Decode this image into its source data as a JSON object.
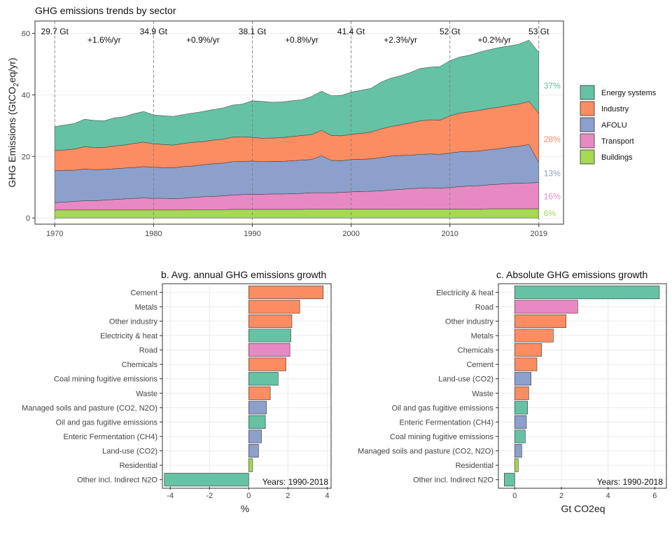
{
  "colors": {
    "Energy systems": "#66c2a5",
    "Industry": "#fc8d62",
    "AFOLU": "#8da0cb",
    "Transport": "#e78ac3",
    "Buildings": "#a6d854"
  },
  "chart_data": [
    {
      "type": "area",
      "title": "GHG emissions trends by sector",
      "ylabel_main": "GHG Emissions (GtCO",
      "ylabel_sub": "2",
      "ylabel_end": "eq/yr)",
      "ylim": [
        -2,
        64
      ],
      "xlim": [
        1968,
        2021.5
      ],
      "x_ticks": [
        1970,
        1980,
        1990,
        2000,
        2010,
        2019
      ],
      "y_ticks": [
        0,
        20,
        40,
        60
      ],
      "legend": {
        "position": "right",
        "order": [
          "Energy systems",
          "Industry",
          "AFOLU",
          "Transport",
          "Buildings"
        ]
      },
      "x": [
        1970,
        1971,
        1972,
        1973,
        1974,
        1975,
        1976,
        1977,
        1978,
        1979,
        1980,
        1981,
        1982,
        1983,
        1984,
        1985,
        1986,
        1987,
        1988,
        1989,
        1990,
        1991,
        1992,
        1993,
        1994,
        1995,
        1996,
        1997,
        1998,
        1999,
        2000,
        2001,
        2002,
        2003,
        2004,
        2005,
        2006,
        2007,
        2008,
        2009,
        2010,
        2011,
        2012,
        2013,
        2014,
        2015,
        2016,
        2017,
        2018,
        2019
      ],
      "series": [
        {
          "name": "Buildings",
          "values": [
            2.6,
            2.6,
            2.6,
            2.6,
            2.6,
            2.6,
            2.6,
            2.6,
            2.6,
            2.6,
            2.6,
            2.6,
            2.6,
            2.6,
            2.7,
            2.7,
            2.7,
            2.7,
            2.8,
            2.8,
            2.8,
            2.8,
            2.8,
            2.8,
            2.8,
            2.8,
            2.9,
            2.9,
            2.9,
            2.9,
            2.9,
            2.9,
            2.9,
            2.9,
            2.9,
            2.9,
            2.9,
            2.9,
            2.9,
            2.9,
            2.9,
            2.9,
            2.9,
            2.9,
            3.0,
            3.0,
            3.0,
            3.0,
            3.0,
            3.0
          ]
        },
        {
          "name": "Transport",
          "values": [
            2.4,
            2.6,
            2.8,
            3.0,
            3.0,
            3.2,
            3.4,
            3.6,
            3.8,
            3.9,
            3.8,
            3.8,
            3.7,
            3.8,
            4.0,
            4.2,
            4.3,
            4.5,
            4.7,
            4.8,
            4.9,
            4.9,
            5.0,
            5.0,
            5.1,
            5.2,
            5.3,
            5.3,
            5.3,
            5.4,
            5.6,
            5.7,
            5.8,
            5.9,
            6.2,
            6.4,
            6.6,
            6.8,
            6.9,
            6.8,
            7.0,
            7.3,
            7.5,
            7.6,
            7.8,
            8.0,
            8.2,
            8.3,
            8.4,
            8.5
          ]
        },
        {
          "name": "AFOLU",
          "values": [
            10.3,
            10.3,
            10.1,
            10.3,
            10.1,
            10.0,
            10.0,
            10.0,
            10.0,
            10.2,
            10.1,
            10.0,
            10.0,
            10.3,
            10.2,
            10.4,
            10.6,
            10.6,
            10.8,
            10.8,
            10.8,
            10.6,
            10.6,
            10.6,
            10.7,
            10.8,
            10.8,
            12.0,
            10.5,
            10.3,
            10.5,
            10.5,
            10.5,
            10.8,
            11.0,
            11.0,
            10.9,
            11.0,
            11.0,
            11.0,
            11.2,
            11.3,
            11.2,
            11.3,
            11.4,
            11.5,
            11.8,
            12.0,
            12.5,
            6.5
          ]
        },
        {
          "name": "Industry",
          "values": [
            6.7,
            6.6,
            6.9,
            7.3,
            7.2,
            7.1,
            7.4,
            7.5,
            7.8,
            8.0,
            7.6,
            7.5,
            7.4,
            7.5,
            7.7,
            7.5,
            7.7,
            7.8,
            8.0,
            8.0,
            7.7,
            7.6,
            7.6,
            7.7,
            7.9,
            8.0,
            8.1,
            8.3,
            8.1,
            8.1,
            8.2,
            8.4,
            8.7,
            9.3,
            9.6,
            10.0,
            10.5,
            10.9,
            11.1,
            11.1,
            12.1,
            12.6,
            12.9,
            13.2,
            13.4,
            13.5,
            13.6,
            13.7,
            14.0,
            16.0
          ]
        },
        {
          "name": "Energy systems",
          "values": [
            7.7,
            8.1,
            8.3,
            8.9,
            8.8,
            8.7,
            9.1,
            9.2,
            9.7,
            9.9,
            9.4,
            9.3,
            9.3,
            9.4,
            9.5,
            9.8,
            9.9,
            10.1,
            10.4,
            10.6,
            11.9,
            12.0,
            11.6,
            11.6,
            11.6,
            11.6,
            12.4,
            12.7,
            12.9,
            13.1,
            13.7,
            14.0,
            14.2,
            15.2,
            15.7,
            15.9,
            16.4,
            17.0,
            17.1,
            17.4,
            17.9,
            18.2,
            18.4,
            18.9,
            19.1,
            19.4,
            19.3,
            19.5,
            19.9,
            19.8
          ]
        }
      ],
      "period_markers": [
        {
          "year": 1970,
          "total": "29.7 Gt"
        },
        {
          "year": 1980,
          "total": "34.9 Gt"
        },
        {
          "year": 1990,
          "total": "38.1 Gt"
        },
        {
          "year": 2000,
          "total": "41.4 Gt"
        },
        {
          "year": 2010,
          "total": "52 Gt"
        },
        {
          "year": 2019,
          "total": "53 Gt"
        }
      ],
      "growth_labels": [
        {
          "x": 1975,
          "text": "+1.6%/yr"
        },
        {
          "x": 1985,
          "text": "+0.9%/yr"
        },
        {
          "x": 1995,
          "text": "+0.8%/yr"
        },
        {
          "x": 2005,
          "text": "+2.3%/yr"
        },
        {
          "x": 2014.5,
          "text": "+0.2%/yr"
        }
      ],
      "share_labels": [
        {
          "series": "Energy systems",
          "text": "37%",
          "y": 43.0
        },
        {
          "series": "Industry",
          "text": "28%",
          "y": 25.5
        },
        {
          "series": "AFOLU",
          "text": "13%",
          "y": 14.5
        },
        {
          "series": "Transport",
          "text": "16%",
          "y": 7.0
        },
        {
          "series": "Buildings",
          "text": "6%",
          "y": 1.5
        }
      ]
    },
    {
      "type": "bar",
      "title": "b. Avg. annual GHG emissions growth",
      "xlabel": "%",
      "xlim": [
        -4.4,
        4.2
      ],
      "x_ticks": [
        -4,
        -2,
        0,
        2,
        4
      ],
      "note": "Years: 1990-2018",
      "categories": [
        "Cement",
        "Metals",
        "Other industry",
        "Electricity & heat",
        "Road",
        "Chemicals",
        "Coal mining fugitive emissions",
        "Waste",
        "Managed soils and pasture (CO2, N2O)",
        "Oil and gas fugitive emissions",
        "Enteric Fermentation (CH4)",
        "Land-use (CO2)",
        "Residential",
        "Other incl. Indirect N2O"
      ],
      "values": [
        3.8,
        2.6,
        2.2,
        2.15,
        2.1,
        1.9,
        1.5,
        1.1,
        0.9,
        0.85,
        0.65,
        0.5,
        0.2,
        -4.3
      ],
      "sectors": [
        "Industry",
        "Industry",
        "Industry",
        "Energy systems",
        "Transport",
        "Industry",
        "Energy systems",
        "Industry",
        "AFOLU",
        "Energy systems",
        "AFOLU",
        "AFOLU",
        "Buildings",
        "Energy systems"
      ]
    },
    {
      "type": "bar",
      "title": "c. Absolute GHG emissions growth",
      "xlabel": "Gt CO2eq",
      "xlim": [
        -0.7,
        6.5
      ],
      "x_ticks": [
        0,
        2,
        4,
        6
      ],
      "note": "Years: 1990-2018",
      "categories": [
        "Electricity & heat",
        "Road",
        "Other industry",
        "Metals",
        "Chemicals",
        "Cement",
        "Land-use (CO2)",
        "Waste",
        "Oil and gas fugitive emissions",
        "Enteric Fermentation (CH4)",
        "Coal mining fugitive emissions",
        "Managed soils and pasture (CO2, N2O)",
        "Residential",
        "Other incl. Indirect N2O"
      ],
      "values": [
        6.2,
        2.7,
        2.2,
        1.65,
        1.15,
        0.95,
        0.7,
        0.6,
        0.55,
        0.5,
        0.45,
        0.3,
        0.15,
        -0.45
      ],
      "sectors": [
        "Energy systems",
        "Transport",
        "Industry",
        "Industry",
        "Industry",
        "Industry",
        "AFOLU",
        "Industry",
        "Energy systems",
        "AFOLU",
        "Energy systems",
        "AFOLU",
        "Buildings",
        "Energy systems"
      ]
    }
  ]
}
